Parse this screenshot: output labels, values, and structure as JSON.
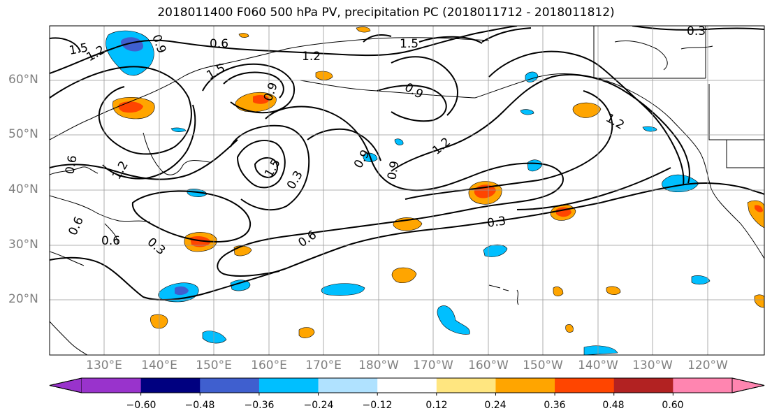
{
  "title": "2018011400 F060 500 hPa PV, precipitation PC (2018011712 - 2018011812)",
  "map": {
    "lat_labels": [
      "60°N",
      "50°N",
      "40°N",
      "30°N",
      "20°N"
    ],
    "lon_labels": [
      "130°E",
      "140°E",
      "150°E",
      "160°E",
      "170°E",
      "180°W",
      "170°W",
      "160°W",
      "150°W",
      "140°W",
      "130°W",
      "120°W"
    ],
    "contour_labels": [
      "1.5",
      "1.2",
      "0.9",
      "0.6",
      "1.2",
      "1.5",
      "1.5",
      "0.3",
      "0.9",
      "1.2",
      "1.5",
      "0.9",
      "0.9",
      "0.3",
      "0.6",
      "0.6",
      "0.6",
      "0.3",
      "0.6",
      "1.2",
      "1.2",
      "0.3",
      "0.9"
    ]
  },
  "colorbar": {
    "labels": [
      "−0.60",
      "−0.48",
      "−0.36",
      "−0.24",
      "−0.12",
      "0.12",
      "0.24",
      "0.36",
      "0.48",
      "0.60"
    ],
    "colors": [
      "#9933cc",
      "#000080",
      "#3f5fcf",
      "#00bfff",
      "#b0e2ff",
      "#ffffff",
      "#ffe680",
      "#ffa500",
      "#ff4500",
      "#b22222",
      "#ff85b0"
    ]
  }
}
